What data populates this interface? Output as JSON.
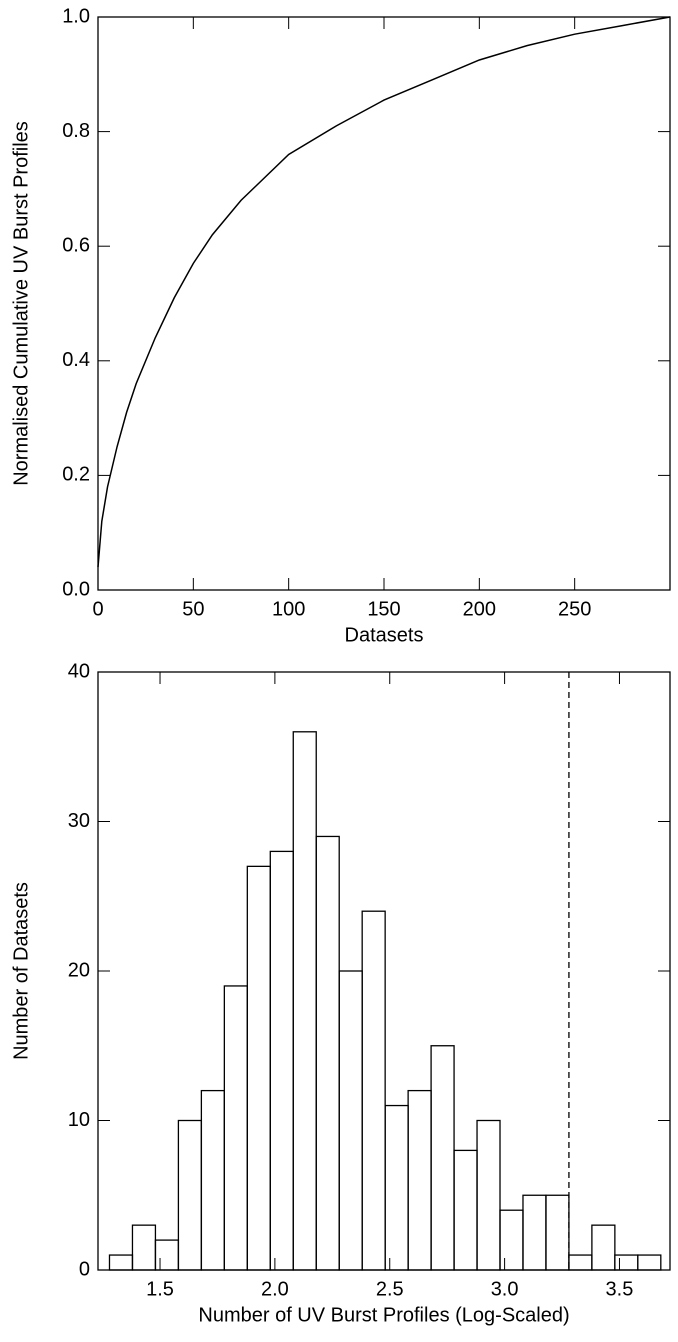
{
  "chart_data": [
    {
      "type": "line",
      "x_label": "Datasets",
      "y_label": "Normalised Cumulative UV Burst Profiles",
      "x": [
        0,
        2,
        5,
        10,
        15,
        20,
        30,
        40,
        50,
        60,
        75,
        100,
        125,
        150,
        175,
        200,
        225,
        250,
        275,
        300
      ],
      "values": [
        0.04,
        0.12,
        0.18,
        0.25,
        0.31,
        0.36,
        0.44,
        0.51,
        0.57,
        0.62,
        0.68,
        0.76,
        0.81,
        0.855,
        0.89,
        0.925,
        0.95,
        0.97,
        0.985,
        1.0
      ],
      "color": "#000000",
      "xlim": [
        0,
        300
      ],
      "xticks": [
        0,
        50,
        100,
        150,
        200,
        250
      ],
      "ylim": [
        0,
        1
      ],
      "yticks": [
        {
          "value": 0,
          "label": "0.0"
        },
        0.2,
        0.4,
        0.6,
        0.8,
        {
          "value": 1,
          "label": "1.0"
        }
      ]
    },
    {
      "type": "histogram",
      "x_label": "Number of UV Burst Profiles (Log-Scaled)",
      "y_label": "Number of Datasets",
      "bins": [
        1.28,
        1.38,
        1.48,
        1.58,
        1.68,
        1.78,
        1.88,
        1.98,
        2.08,
        2.18,
        2.28,
        2.38,
        2.48,
        2.58,
        2.68,
        2.78,
        2.88,
        2.98,
        3.08,
        3.18,
        3.28,
        3.38,
        3.48,
        3.58,
        3.68
      ],
      "values": [
        1,
        3,
        2,
        10,
        12,
        19,
        27,
        28,
        36,
        29,
        20,
        24,
        11,
        12,
        15,
        8,
        10,
        4,
        5,
        5,
        1,
        3,
        1,
        1
      ],
      "color": "#000000",
      "vline": 3.28,
      "xlim": [
        1.23,
        3.72
      ],
      "xticks": [
        1.5,
        {
          "value": 2,
          "label": "2.0"
        },
        2.5,
        {
          "value": 3,
          "label": "3.0"
        },
        3.5
      ],
      "ylim": [
        0,
        40
      ],
      "yticks": [
        0,
        10,
        20,
        30,
        40
      ]
    }
  ]
}
